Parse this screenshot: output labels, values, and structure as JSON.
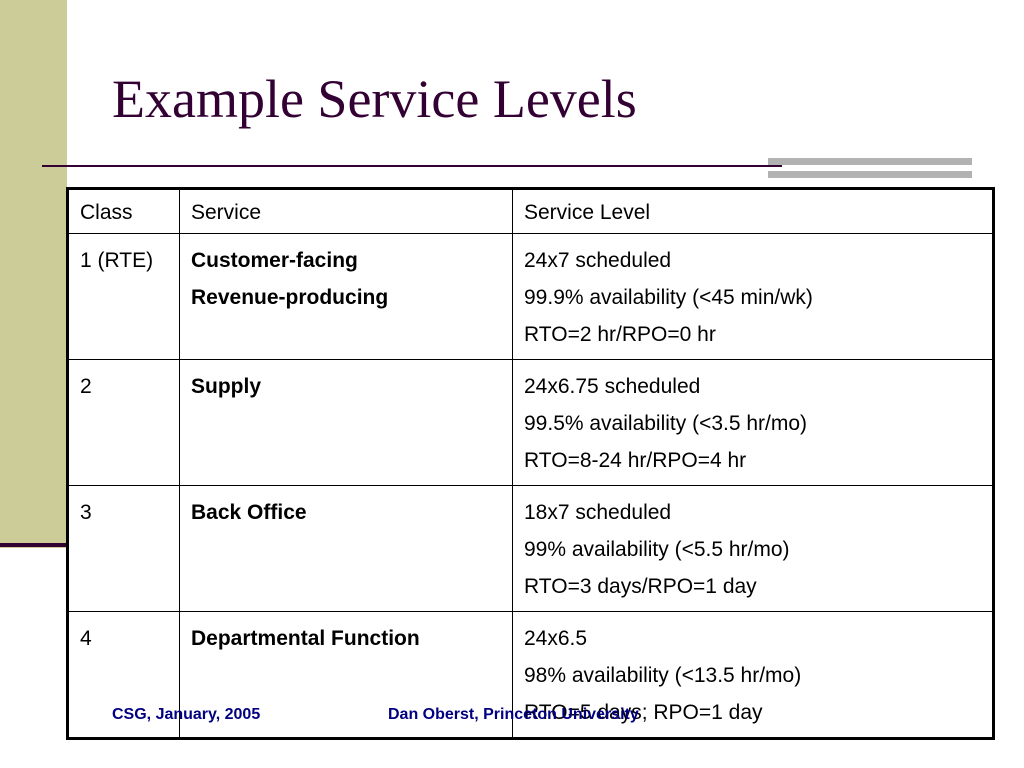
{
  "slide": {
    "title": "Example Service Levels",
    "colors": {
      "side_band": "#cccc99",
      "rule": "#330033",
      "title": "#330033",
      "accent_bar": "#b2b2b2",
      "footer": "#000080"
    }
  },
  "table": {
    "headers": [
      "Class",
      "Service",
      "Service Level"
    ],
    "rows": [
      {
        "class": "1 (RTE)",
        "service": [
          "Customer-facing",
          "Revenue-producing"
        ],
        "level": [
          "24x7 scheduled",
          "99.9% availability (<45 min/wk)",
          "RTO=2 hr/RPO=0 hr"
        ]
      },
      {
        "class": "2",
        "service": [
          "Supply"
        ],
        "level": [
          "24x6.75 scheduled",
          "99.5% availability (<3.5 hr/mo)",
          "RTO=8-24 hr/RPO=4 hr"
        ]
      },
      {
        "class": "3",
        "service": [
          "Back Office"
        ],
        "level": [
          "18x7 scheduled",
          "99% availability (<5.5 hr/mo)",
          "RTO=3 days/RPO=1 day"
        ]
      },
      {
        "class": "4",
        "service": [
          "Departmental Function"
        ],
        "level": [
          "24x6.5",
          "98% availability (<13.5 hr/mo)",
          "RTO=5 days; RPO=1 day"
        ]
      }
    ]
  },
  "footer": {
    "left": "CSG, January, 2005",
    "right": "Dan Oberst, Princeton University"
  }
}
